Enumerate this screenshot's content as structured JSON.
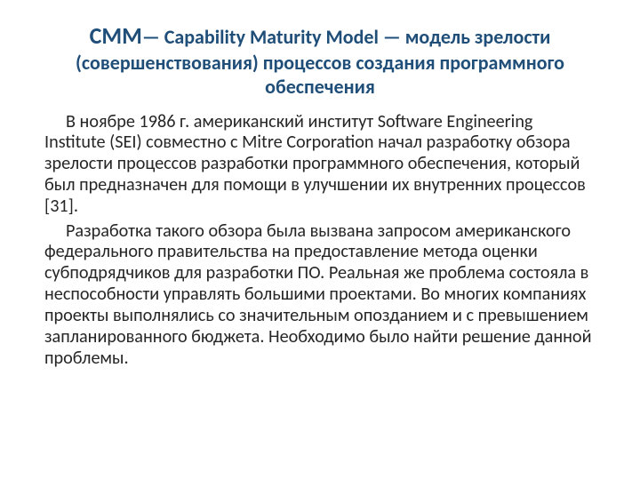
{
  "title": {
    "abbr": "СММ",
    "rest": "— Capability Maturity Model — модель зрелости (совершенствования) процессов создания программного обеспечения",
    "color": "#1f4e79"
  },
  "paragraphs": [
    "В ноябре 1986 г. американский институт Software Engineering Institute (SEI) совместно с Mitre Corporation начал разработку обзора зрелости процессов разработки программного обеспечения, который был предназначен для помощи в улучшении их внутренних процессов [31].",
    "Разработка такого обзора была вызвана запросом американского федерального правительства на предоставление метода оценки субподрядчиков для разработки ПО. Реальная же проблема состояла в неспособности управлять большими проектами. Во многих компаниях проекты выполнялись со значительным опозданием и с превышением запланированного бюджета. Необходимо было найти решение данной проблемы."
  ],
  "body_color": "#262626",
  "background_color": "#ffffff"
}
